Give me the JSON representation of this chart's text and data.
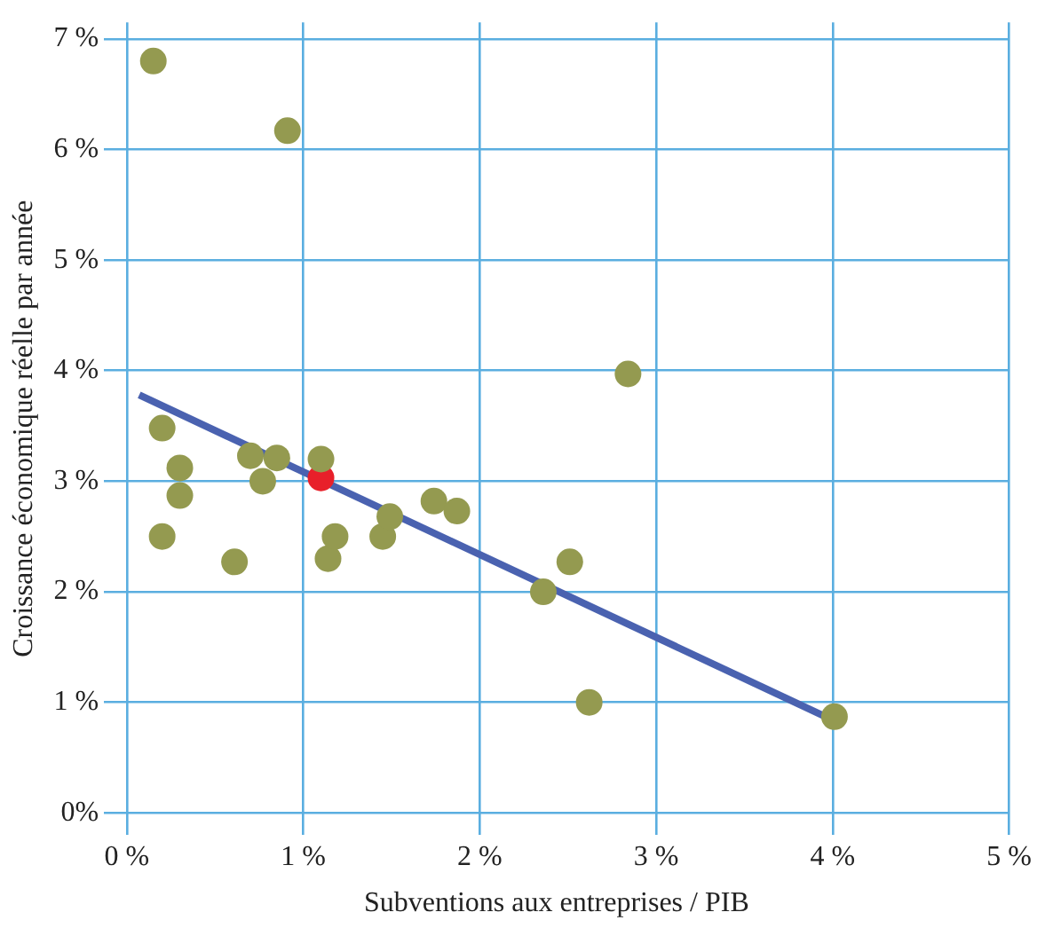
{
  "chart_data": {
    "type": "scatter",
    "xlabel": "Subventions aux entreprises / PIB",
    "ylabel": "Croissance économique réelle par année",
    "xlim": [
      -0.13,
      5
    ],
    "ylim": [
      -0.2,
      7.15
    ],
    "xticks": [
      {
        "value": 0,
        "label": "0 %"
      },
      {
        "value": 1,
        "label": "1 %"
      },
      {
        "value": 2,
        "label": "2 %"
      },
      {
        "value": 3,
        "label": "3 %"
      },
      {
        "value": 4,
        "label": "4 %"
      },
      {
        "value": 5,
        "label": "5 %"
      }
    ],
    "yticks": [
      {
        "value": 0,
        "label": "0%"
      },
      {
        "value": 1,
        "label": "1 %"
      },
      {
        "value": 2,
        "label": "2 %"
      },
      {
        "value": 3,
        "label": "3 %"
      },
      {
        "value": 4,
        "label": "4 %"
      },
      {
        "value": 5,
        "label": "5 %"
      },
      {
        "value": 6,
        "label": "6 %"
      },
      {
        "value": 7,
        "label": "7 %"
      }
    ],
    "grid": true,
    "legend": false,
    "marker": "circle",
    "series": [
      {
        "color": "#949a50",
        "x": [
          0.15,
          0.91,
          0.2,
          0.3,
          0.3,
          0.2,
          0.61,
          0.7,
          0.77,
          0.85,
          1.1,
          1.14,
          1.18,
          1.45,
          1.49,
          1.74,
          1.87,
          2.36,
          2.51,
          2.62,
          2.84,
          4.01
        ],
        "values": [
          6.8,
          6.17,
          3.48,
          3.12,
          2.87,
          2.5,
          2.27,
          3.23,
          3.0,
          3.21,
          3.2,
          2.3,
          2.5,
          2.5,
          2.68,
          2.82,
          2.73,
          2.0,
          2.27,
          1.0,
          3.97,
          0.87
        ]
      },
      {
        "color": "#e8202a",
        "x": [
          1.1
        ],
        "values": [
          3.03
        ]
      },
      {
        "type": "line",
        "color": "#4a62b0",
        "x": [
          0.07,
          4.0
        ],
        "values": [
          3.78,
          0.84
        ],
        "marker": "none"
      }
    ]
  }
}
